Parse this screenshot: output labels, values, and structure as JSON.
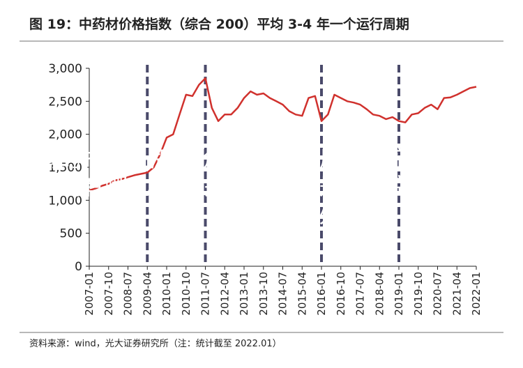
{
  "title": "图 19：中药材价格指数（综合 200）平均 3-4 年一个运行周期",
  "source": "资料来源：wind，光大证券研究所（注：统计截至 2022.01）",
  "overlay_text": "空调的排名品牌和价位,十大家用中央空调排名,家用空调有哪几种,中央空调好还是挂式空调好,空调出风口滴水怎么处理",
  "chart_data": {
    "type": "line",
    "title": "图 19：中药材价格指数（综合 200）平均 3-4 年一个运行周期",
    "xlabel": "",
    "ylabel": "",
    "ylim": [
      0,
      3000
    ],
    "yticks": [
      "0",
      "500",
      "1,000",
      "1,500",
      "2,000",
      "2,500",
      "3,000"
    ],
    "xticks": [
      "2007-01",
      "2007-10",
      "2008-07",
      "2009-04",
      "2010-01",
      "2010-10",
      "2011-07",
      "2012-04",
      "2013-01",
      "2013-10",
      "2014-07",
      "2015-04",
      "2016-01",
      "2016-10",
      "2017-07",
      "2018-04",
      "2019-01",
      "2019-10",
      "2020-07",
      "2021-04",
      "2022-01"
    ],
    "x_start": "2007-01",
    "x_end": "2022-01",
    "cycle_markers": [
      "2009-04",
      "2011-07",
      "2016-01",
      "2019-01"
    ],
    "line_color": "#d0312d",
    "marker_color": "#4a4a6a",
    "series": [
      {
        "name": "",
        "x": [
          "2007-01",
          "2007-04",
          "2007-07",
          "2007-10",
          "2008-01",
          "2008-04",
          "2008-07",
          "2008-10",
          "2009-01",
          "2009-04",
          "2009-07",
          "2009-10",
          "2010-01",
          "2010-04",
          "2010-07",
          "2010-10",
          "2011-01",
          "2011-04",
          "2011-07",
          "2011-10",
          "2012-01",
          "2012-04",
          "2012-07",
          "2012-10",
          "2013-01",
          "2013-04",
          "2013-07",
          "2013-10",
          "2014-01",
          "2014-04",
          "2014-07",
          "2014-10",
          "2015-01",
          "2015-04",
          "2015-07",
          "2015-10",
          "2016-01",
          "2016-04",
          "2016-07",
          "2016-10",
          "2017-01",
          "2017-04",
          "2017-07",
          "2017-10",
          "2018-01",
          "2018-04",
          "2018-07",
          "2018-10",
          "2019-01",
          "2019-04",
          "2019-07",
          "2019-10",
          "2020-01",
          "2020-04",
          "2020-07",
          "2020-10",
          "2021-01",
          "2021-04",
          "2021-07",
          "2021-10",
          "2022-01"
        ],
        "values": [
          1150,
          1180,
          1220,
          1250,
          1300,
          1320,
          1350,
          1380,
          1400,
          1420,
          1500,
          1700,
          1950,
          2000,
          2300,
          2600,
          2580,
          2750,
          2850,
          2400,
          2200,
          2300,
          2300,
          2400,
          2550,
          2650,
          2600,
          2620,
          2550,
          2500,
          2450,
          2350,
          2300,
          2280,
          2550,
          2580,
          2200,
          2300,
          2600,
          2550,
          2500,
          2480,
          2450,
          2380,
          2300,
          2280,
          2230,
          2260,
          2200,
          2180,
          2300,
          2320,
          2400,
          2450,
          2380,
          2550,
          2560,
          2600,
          2650,
          2700,
          2720
        ]
      }
    ]
  }
}
